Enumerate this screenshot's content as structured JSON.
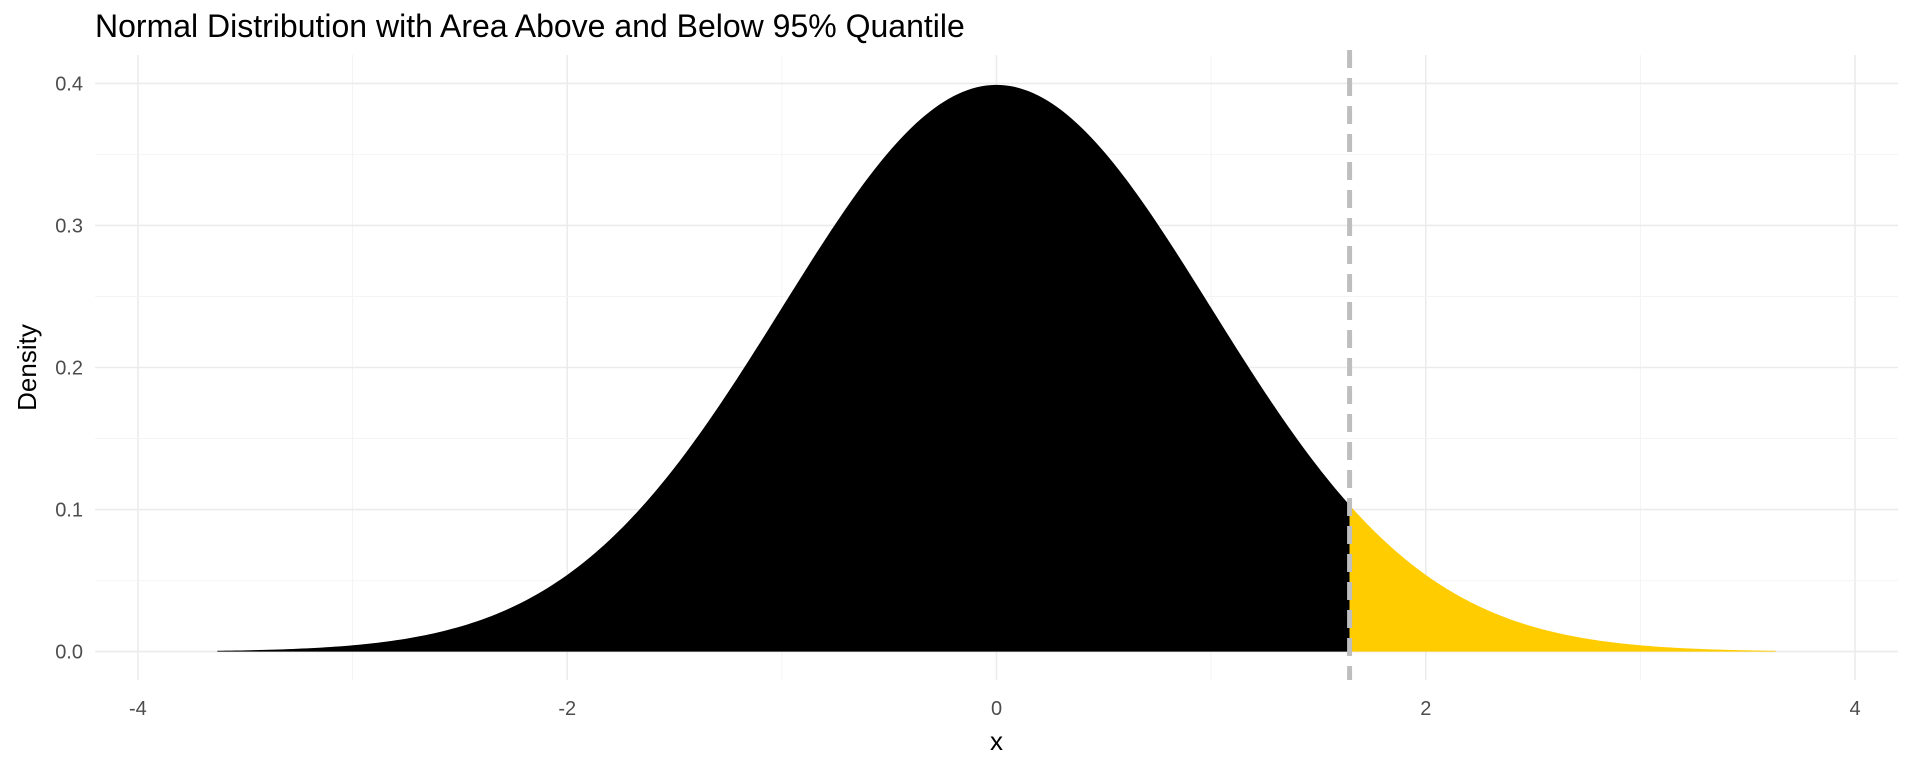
{
  "chart_data": {
    "type": "area",
    "title": "Normal Distribution with Area Above and Below 95% Quantile",
    "xlabel": "x",
    "ylabel": "Density",
    "xlim": [
      -4.2,
      4.2
    ],
    "ylim": [
      -0.02,
      0.42
    ],
    "x_ticks": [
      -4,
      -2,
      0,
      2,
      4
    ],
    "x_tick_labels": [
      "-4",
      "-2",
      "0",
      "2",
      "4"
    ],
    "y_ticks": [
      0.0,
      0.1,
      0.2,
      0.3,
      0.4
    ],
    "y_tick_labels": [
      "0.0",
      "0.1",
      "0.2",
      "0.3",
      "0.4"
    ],
    "grid": true,
    "legend": "none",
    "distribution": {
      "family": "normal",
      "mean": 0,
      "sd": 1
    },
    "quantile": {
      "probability": 0.95,
      "x": 1.645
    },
    "curve_range": [
      -3.63,
      3.63
    ],
    "regions": [
      {
        "label_below": "Below 95% quantile",
        "from": -3.63,
        "to": 1.645,
        "color": "#000000"
      },
      {
        "label_above": "Above 95% quantile",
        "from": 1.645,
        "to": 3.63,
        "color": "#FFCC00"
      }
    ],
    "quantile_line": {
      "color": "#BEBEBE",
      "style": "dashed"
    },
    "points": [
      {
        "x": -3.5,
        "y": 0.0009
      },
      {
        "x": -3.0,
        "y": 0.0044
      },
      {
        "x": -2.5,
        "y": 0.0175
      },
      {
        "x": -2.0,
        "y": 0.054
      },
      {
        "x": -1.5,
        "y": 0.1295
      },
      {
        "x": -1.0,
        "y": 0.242
      },
      {
        "x": -0.5,
        "y": 0.3521
      },
      {
        "x": 0.0,
        "y": 0.3989
      },
      {
        "x": 0.5,
        "y": 0.3521
      },
      {
        "x": 1.0,
        "y": 0.242
      },
      {
        "x": 1.5,
        "y": 0.1295
      },
      {
        "x": 1.645,
        "y": 0.1031
      },
      {
        "x": 2.0,
        "y": 0.054
      },
      {
        "x": 2.5,
        "y": 0.0175
      },
      {
        "x": 3.0,
        "y": 0.0044
      },
      {
        "x": 3.5,
        "y": 0.0009
      }
    ]
  }
}
